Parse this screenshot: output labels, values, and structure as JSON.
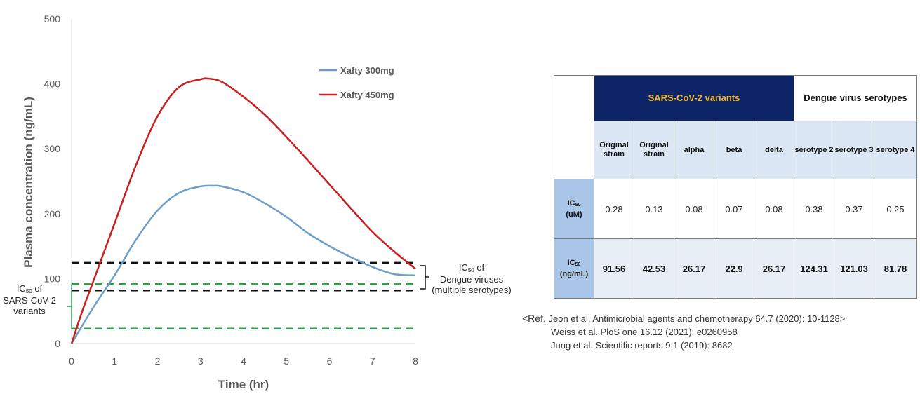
{
  "chart_data": {
    "type": "line",
    "xlabel": "Time (hr)",
    "ylabel": "Plasma concentration (ng/mL)",
    "xlim": [
      0,
      8
    ],
    "ylim": [
      0,
      500
    ],
    "x_ticks": [
      "0",
      "1",
      "2",
      "3",
      "4",
      "5",
      "6",
      "7",
      "8"
    ],
    "y_ticks": [
      "0",
      "100",
      "200",
      "300",
      "400",
      "500"
    ],
    "grid": false,
    "legend_position": "top-right",
    "series": [
      {
        "name": "Xafty 300mg",
        "color": "#6c9ec8",
        "x": [
          0,
          0.5,
          1,
          1.5,
          2,
          2.5,
          3,
          3.3,
          3.5,
          4,
          4.5,
          5,
          5.5,
          6,
          6.5,
          7,
          7.5,
          8
        ],
        "y": [
          0,
          55,
          105,
          160,
          205,
          232,
          242,
          243,
          242,
          233,
          216,
          195,
          170,
          150,
          133,
          118,
          107,
          105
        ]
      },
      {
        "name": "Xafty 450mg",
        "color": "#c8201e",
        "x": [
          0,
          0.25,
          0.5,
          0.75,
          1,
          1.5,
          2,
          2.5,
          3,
          3.2,
          3.5,
          4,
          4.5,
          5,
          5.5,
          6,
          6.5,
          7,
          7.5,
          8
        ],
        "y": [
          0,
          50,
          95,
          140,
          185,
          275,
          350,
          395,
          407,
          408,
          403,
          380,
          352,
          318,
          282,
          245,
          208,
          172,
          142,
          115
        ]
      }
    ],
    "reference_lines": [
      {
        "y": 124.31,
        "color": "#111111",
        "group": "dengue"
      },
      {
        "y": 81.78,
        "color": "#111111",
        "group": "dengue"
      },
      {
        "y": 91.56,
        "color": "#2e9e48",
        "group": "sars"
      },
      {
        "y": 22.9,
        "color": "#2e9e48",
        "group": "sars"
      }
    ],
    "annotations": {
      "dengue": {
        "pre": "IC",
        "sub": "50",
        "post": " of",
        "line2": "Dengue viruses",
        "line3": "(multiple serotypes)"
      },
      "sars": {
        "pre": "IC",
        "sub": "50",
        "post": " of",
        "line2": "SARS-CoV-2",
        "line3": "variants"
      }
    }
  },
  "table": {
    "group_sars": "SARS-CoV-2 variants",
    "group_dengue": "Dengue virus serotypes",
    "columns": [
      "Original strain",
      "Original strain",
      "alpha",
      "beta",
      "delta",
      "serotype 2",
      "serotype 3",
      "serotype 4"
    ],
    "rows": [
      {
        "label_pre": "IC",
        "label_sub": "50",
        "label_post": "(uM)",
        "values": [
          "0.28",
          "0.13",
          "0.08",
          "0.07",
          "0.08",
          "0.38",
          "0.37",
          "0.25"
        ]
      },
      {
        "label_pre": "IC",
        "label_sub": "50",
        "label_post": "(ng/mL)",
        "values": [
          "91.56",
          "42.53",
          "26.17",
          "22.9",
          "26.17",
          "124.31",
          "121.03",
          "81.78"
        ]
      }
    ]
  },
  "references": {
    "prefix": "<Ref.",
    "lines": [
      "Jeon et al. Antimicrobial agents and chemotherapy 64.7 (2020): 10-1128>",
      "Weiss et al. PloS one 16.12 (2021): e0260958",
      "Jung et al. Scientific reports 9.1 (2019): 8682"
    ]
  }
}
